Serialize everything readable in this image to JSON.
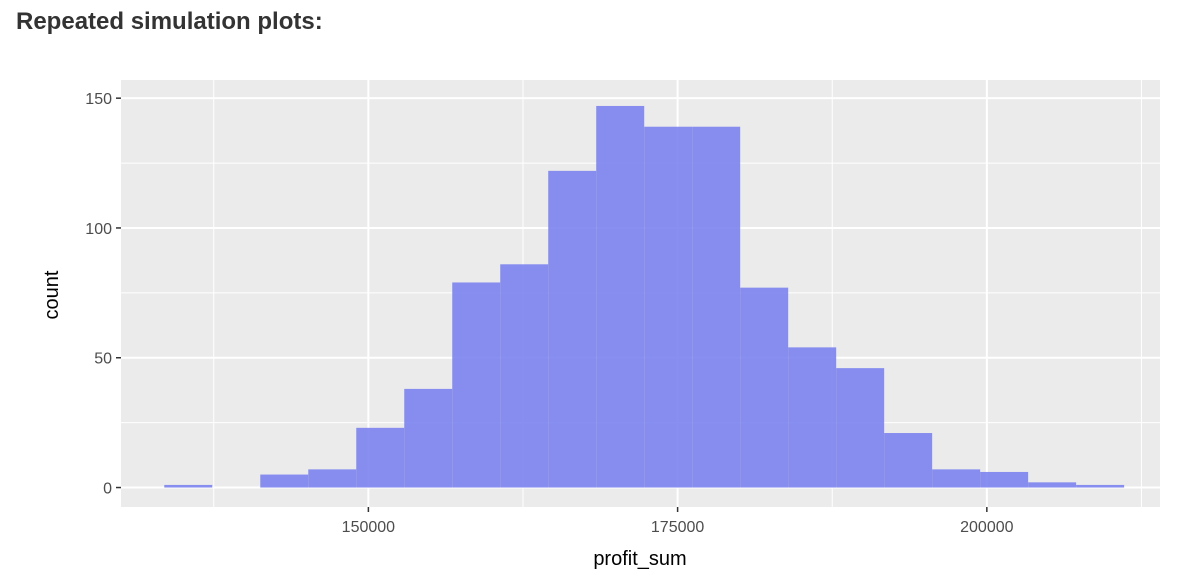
{
  "heading": "Repeated simulation plots:",
  "chart_data": {
    "type": "bar",
    "subtype": "histogram",
    "xlabel": "profit_sum",
    "ylabel": "count",
    "xlim": [
      130000,
      214000
    ],
    "ylim": [
      -7.5,
      157
    ],
    "x_ticks": [
      150000,
      175000,
      200000
    ],
    "y_ticks": [
      0,
      50,
      100,
      150
    ],
    "bin_start": 133500,
    "bin_width": 3880,
    "values": [
      1,
      0,
      5,
      7,
      23,
      38,
      79,
      86,
      122,
      147,
      139,
      139,
      77,
      54,
      46,
      21,
      7,
      6,
      2,
      1
    ],
    "fill_color": "#7b83f0",
    "panel_color": "#ebebeb",
    "grid": true
  }
}
